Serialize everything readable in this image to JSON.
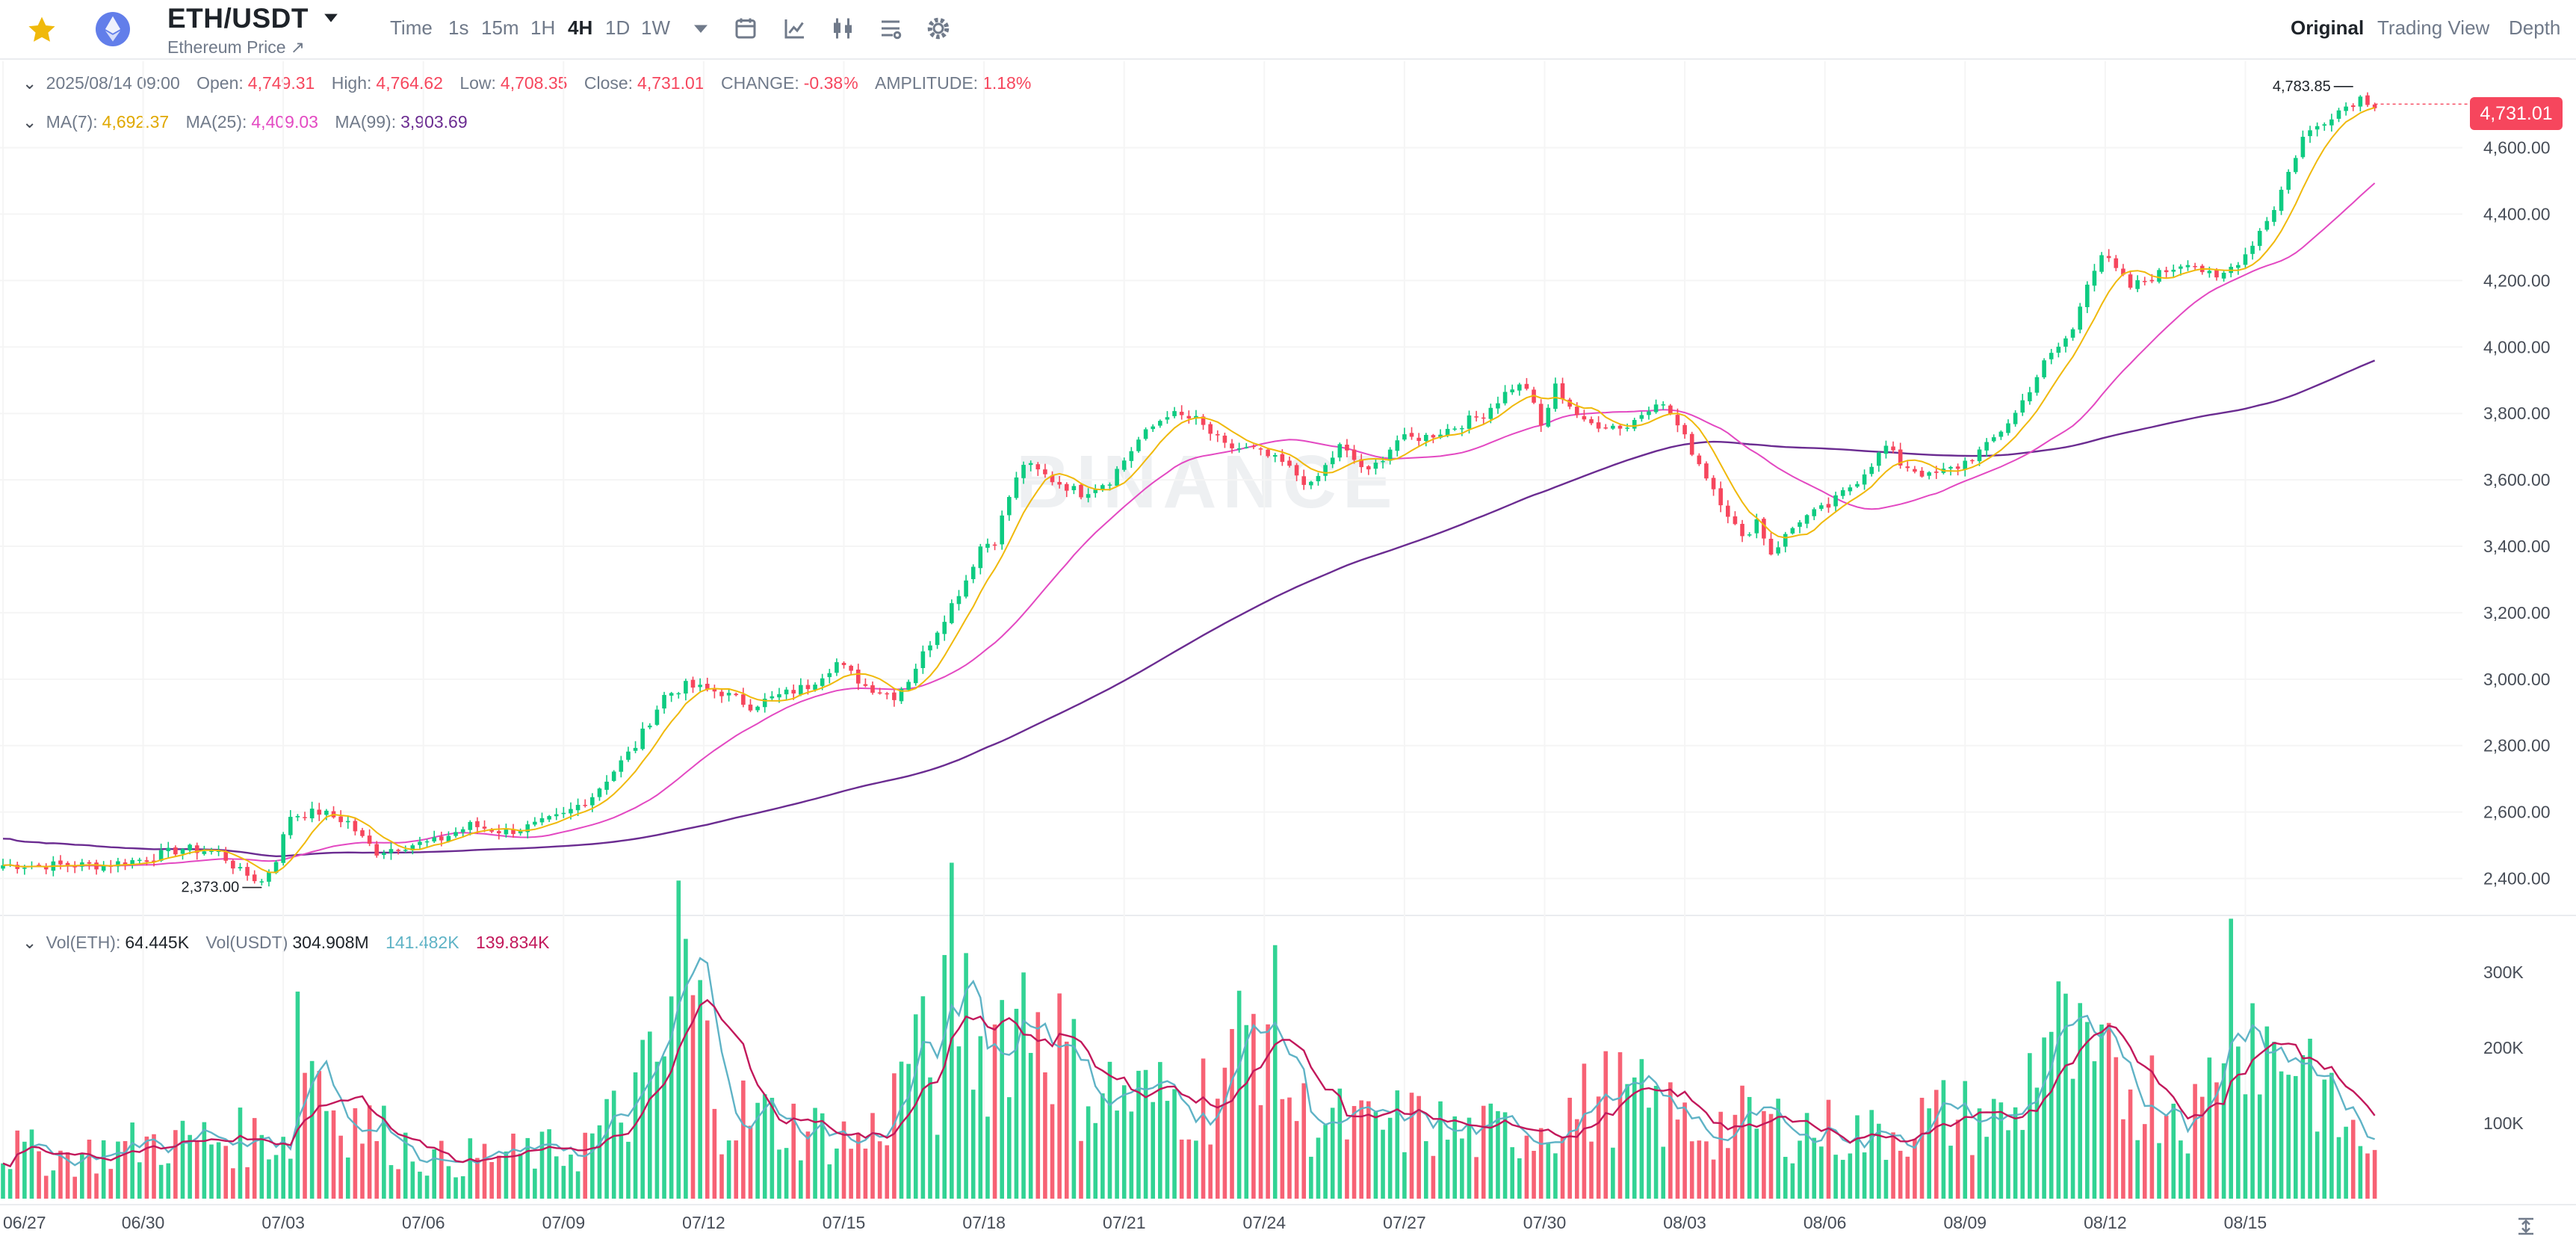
{
  "header": {
    "pair": "ETH/USDT",
    "subtitle": "Ethereum Price ↗",
    "timeframes": [
      "Time",
      "1s",
      "15m",
      "1H",
      "4H",
      "1D",
      "1W"
    ],
    "active_timeframe": "4H",
    "views": [
      "Original",
      "Trading View",
      "Depth"
    ],
    "active_view": "Original",
    "icons": [
      "star-icon",
      "ethereum-icon",
      "caret-down-icon",
      "more-caret-icon",
      "calendar-icon",
      "indicator-icon",
      "candle-type-icon",
      "layout-icon",
      "settings-icon"
    ]
  },
  "ohlc": {
    "date": "2025/08/14 09:00",
    "open_label": "Open:",
    "open": "4,749.31",
    "high_label": "High:",
    "high": "4,764.62",
    "low_label": "Low:",
    "low": "4,708.35",
    "close_label": "Close:",
    "close": "4,731.01",
    "change_label": "CHANGE:",
    "change": "-0.38%",
    "amplitude_label": "AMPLITUDE:",
    "amplitude": "1.18%"
  },
  "ma": {
    "ma7_label": "MA(7):",
    "ma7": "4,692.37",
    "ma25_label": "MA(25):",
    "ma25": "4,409.03",
    "ma99_label": "MA(99):",
    "ma99": "3,903.69"
  },
  "vol": {
    "eth_label": "Vol(ETH):",
    "eth": "64.445K",
    "usdt_label": "Vol(USDT)",
    "usdt": "304.908M",
    "ma1": "141.482K",
    "ma2": "139.834K"
  },
  "last_price": "4,731.01",
  "watermark": "BINANCE",
  "colors": {
    "up": "#0ecb81",
    "down": "#f6465d",
    "ma7": "#f0b90b",
    "ma25": "#e349c2",
    "ma99": "#6b2c91",
    "vol_ma1": "#5fb3c6",
    "vol_ma2": "#c2185b"
  },
  "chart_data": {
    "type": "candlestick",
    "interval": "4h",
    "x_start": "2025-06-27",
    "x_ticks": [
      "06/27",
      "06/30",
      "07/03",
      "07/06",
      "07/09",
      "07/12",
      "07/15",
      "07/18",
      "07/21",
      "07/24",
      "07/27",
      "07/30",
      "08/03",
      "08/06",
      "08/09",
      "08/12",
      "08/15"
    ],
    "price_ticks": [
      "4,600.00",
      "4,400.00",
      "4,200.00",
      "4,000.00",
      "3,800.00",
      "3,600.00",
      "3,400.00",
      "3,200.00",
      "3,000.00",
      "2,800.00",
      "2,600.00",
      "2,400.00"
    ],
    "ylim": [
      2300,
      4860
    ],
    "volume_ticks": [
      "300K",
      "200K",
      "100K"
    ],
    "volume_ylim": [
      0,
      370
    ],
    "high_marker": "4,783.85",
    "low_marker": "2,373.00",
    "price_anchors": [
      [
        0,
        2440
      ],
      [
        14,
        2440
      ],
      [
        20,
        2460
      ],
      [
        25,
        2490
      ],
      [
        30,
        2480
      ],
      [
        33,
        2420
      ],
      [
        36,
        2390
      ],
      [
        38,
        2460
      ],
      [
        40,
        2590
      ],
      [
        44,
        2600
      ],
      [
        48,
        2570
      ],
      [
        50,
        2520
      ],
      [
        52,
        2480
      ],
      [
        56,
        2500
      ],
      [
        60,
        2510
      ],
      [
        65,
        2560
      ],
      [
        70,
        2540
      ],
      [
        74,
        2560
      ],
      [
        78,
        2590
      ],
      [
        82,
        2650
      ],
      [
        86,
        2750
      ],
      [
        88,
        2800
      ],
      [
        92,
        2950
      ],
      [
        95,
        2980
      ],
      [
        100,
        2960
      ],
      [
        104,
        2920
      ],
      [
        108,
        2950
      ],
      [
        112,
        2980
      ],
      [
        116,
        3050
      ],
      [
        120,
        2980
      ],
      [
        124,
        2950
      ],
      [
        126,
        3000
      ],
      [
        130,
        3150
      ],
      [
        134,
        3300
      ],
      [
        136,
        3400
      ],
      [
        138,
        3420
      ],
      [
        140,
        3550
      ],
      [
        142,
        3650
      ],
      [
        146,
        3600
      ],
      [
        150,
        3560
      ],
      [
        154,
        3600
      ],
      [
        158,
        3720
      ],
      [
        162,
        3800
      ],
      [
        166,
        3780
      ],
      [
        170,
        3700
      ],
      [
        174,
        3690
      ],
      [
        178,
        3650
      ],
      [
        182,
        3580
      ],
      [
        186,
        3700
      ],
      [
        190,
        3620
      ],
      [
        194,
        3720
      ],
      [
        198,
        3730
      ],
      [
        202,
        3760
      ],
      [
        206,
        3800
      ],
      [
        210,
        3880
      ],
      [
        212,
        3880
      ],
      [
        214,
        3760
      ],
      [
        216,
        3880
      ],
      [
        220,
        3770
      ],
      [
        226,
        3760
      ],
      [
        230,
        3840
      ],
      [
        232,
        3800
      ],
      [
        236,
        3650
      ],
      [
        240,
        3500
      ],
      [
        242,
        3420
      ],
      [
        244,
        3480
      ],
      [
        246,
        3380
      ],
      [
        250,
        3480
      ],
      [
        254,
        3520
      ],
      [
        258,
        3600
      ],
      [
        262,
        3700
      ],
      [
        264,
        3650
      ],
      [
        268,
        3610
      ],
      [
        272,
        3640
      ],
      [
        276,
        3700
      ],
      [
        280,
        3800
      ],
      [
        284,
        3950
      ],
      [
        288,
        4050
      ],
      [
        290,
        4200
      ],
      [
        292,
        4280
      ],
      [
        296,
        4180
      ],
      [
        300,
        4220
      ],
      [
        304,
        4260
      ],
      [
        308,
        4200
      ],
      [
        312,
        4280
      ],
      [
        316,
        4420
      ],
      [
        320,
        4630
      ],
      [
        324,
        4700
      ],
      [
        328,
        4750
      ],
      [
        330,
        4731
      ]
    ],
    "volume_anchors": [
      [
        0,
        70
      ],
      [
        10,
        60
      ],
      [
        20,
        80
      ],
      [
        40,
        90
      ],
      [
        41,
        260
      ],
      [
        46,
        130
      ],
      [
        60,
        55
      ],
      [
        80,
        70
      ],
      [
        86,
        120
      ],
      [
        92,
        200
      ],
      [
        94,
        360
      ],
      [
        100,
        130
      ],
      [
        120,
        80
      ],
      [
        124,
        140
      ],
      [
        126,
        230
      ],
      [
        130,
        160
      ],
      [
        132,
        330
      ],
      [
        136,
        210
      ],
      [
        140,
        270
      ],
      [
        144,
        280
      ],
      [
        150,
        160
      ],
      [
        160,
        140
      ],
      [
        168,
        150
      ],
      [
        176,
        280
      ],
      [
        180,
        120
      ],
      [
        190,
        100
      ],
      [
        196,
        110
      ],
      [
        204,
        90
      ],
      [
        212,
        100
      ],
      [
        224,
        150
      ],
      [
        236,
        100
      ],
      [
        244,
        110
      ],
      [
        260,
        90
      ],
      [
        270,
        120
      ],
      [
        280,
        110
      ],
      [
        284,
        250
      ],
      [
        290,
        180
      ],
      [
        300,
        150
      ],
      [
        306,
        120
      ],
      [
        310,
        330
      ],
      [
        316,
        200
      ],
      [
        320,
        220
      ],
      [
        324,
        120
      ],
      [
        330,
        64
      ]
    ]
  }
}
